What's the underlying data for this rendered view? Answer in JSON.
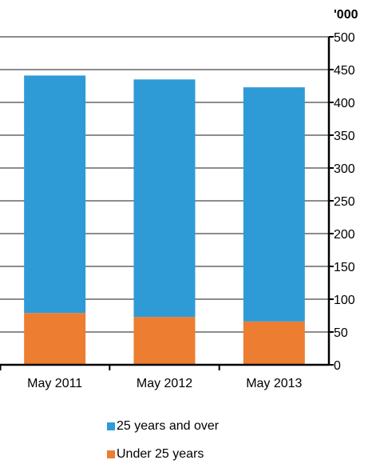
{
  "chart_data": {
    "type": "bar",
    "stacked": true,
    "categories": [
      "May 2011",
      "May 2012",
      "May 2013"
    ],
    "series": [
      {
        "name": "Under 25 years",
        "values": [
          79,
          73,
          66
        ],
        "color": "#ED7D31"
      },
      {
        "name": "25 years and over",
        "values": [
          362,
          362,
          357
        ],
        "color": "#2E9BD6"
      }
    ],
    "y_axis": {
      "unit_label": "'000",
      "ylim": [
        0,
        500
      ],
      "ticks": [
        "0",
        "50",
        "100",
        "150",
        "200",
        "250",
        "300",
        "350",
        "400",
        "450",
        "500"
      ],
      "position": "right"
    },
    "grid": true,
    "legend": {
      "position": "bottom",
      "items": [
        "25 years and over",
        "Under 25 years"
      ]
    }
  }
}
